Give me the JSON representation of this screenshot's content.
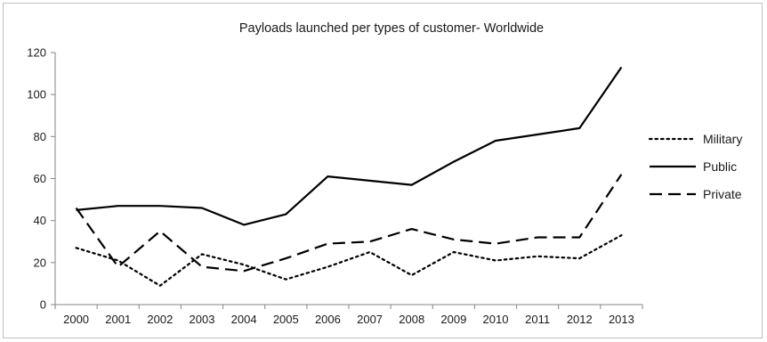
{
  "chart_data": {
    "type": "line",
    "title": "Payloads launched per types of customer- Worldwide",
    "xlabel": "",
    "ylabel": "",
    "categories": [
      "2000",
      "2001",
      "2002",
      "2003",
      "2004",
      "2005",
      "2006",
      "2007",
      "2008",
      "2009",
      "2010",
      "2011",
      "2012",
      "2013"
    ],
    "ylim": [
      0,
      120
    ],
    "yticks": [
      0,
      20,
      40,
      60,
      80,
      100,
      120
    ],
    "grid": false,
    "legend_position": "right",
    "series": [
      {
        "name": "Military",
        "style": "dotted",
        "color": "#000000",
        "values": [
          27,
          21,
          9,
          24,
          19,
          12,
          18,
          25,
          14,
          25,
          21,
          23,
          22,
          33
        ]
      },
      {
        "name": "Public",
        "style": "solid",
        "color": "#000000",
        "values": [
          45,
          47,
          47,
          46,
          38,
          43,
          61,
          59,
          57,
          68,
          78,
          81,
          84,
          113
        ]
      },
      {
        "name": "Private",
        "style": "dashed",
        "color": "#000000",
        "values": [
          46,
          18,
          35,
          18,
          16,
          22,
          29,
          30,
          36,
          31,
          29,
          32,
          32,
          62
        ]
      }
    ]
  }
}
